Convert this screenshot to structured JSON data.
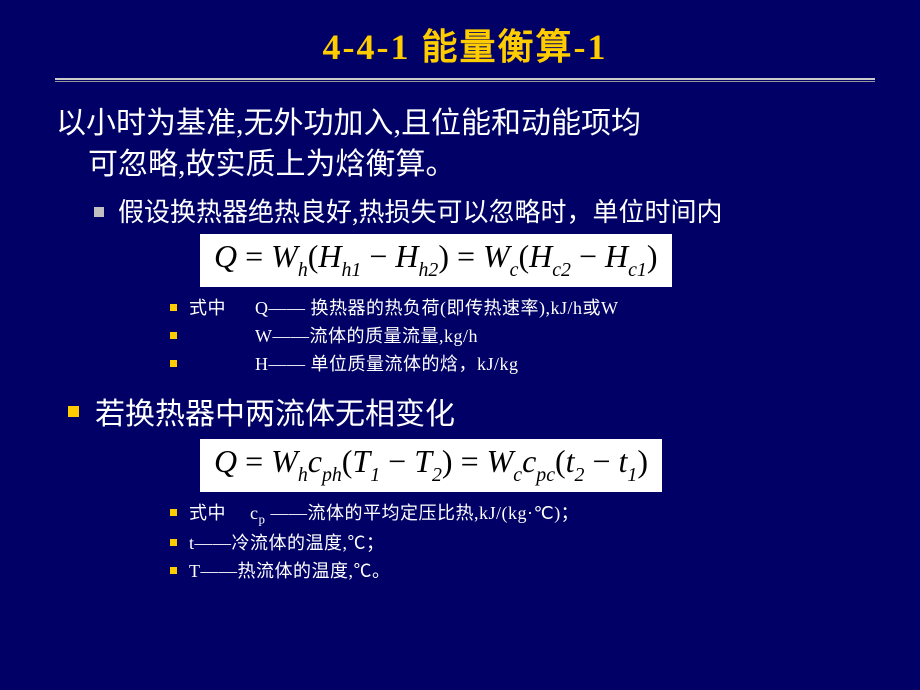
{
  "title": "4-4-1  能量衡算-1",
  "title_color": "#ffcc00",
  "rule_color_top": "#cccccc",
  "rule_color_bottom": "#999999",
  "background": "#000066",
  "text_color": "#ffffff",
  "bullet_level1_color": "#c0c0c0",
  "bullet_level0_color": "#ffcc00",
  "bullet_small_color": "#ffcc00",
  "main_line1": "以小时为基准,无外功加入,且位能和动能项均",
  "main_line2": "可忽略,故实质上为焓衡算。",
  "assumption": "假设换热器绝热良好,热损失可以忽略时，单位时间内",
  "eq1": {
    "html": "Q <span class=\"rm\">=</span> W<sub>h</sub><span class=\"rm\">(</span>H<sub>h1</sub> <span class=\"rm\">&minus;</span> H<sub>h2</sub><span class=\"rm\">)</span> <span class=\"rm\">=</span> W<sub>c</sub><span class=\"rm\">(</span>H<sub>c2</sub> <span class=\"rm\">&minus;</span> H<sub>c1</sub><span class=\"rm\">)</span>",
    "fontsize": 32,
    "bg": "#ffffff",
    "fg": "#000000"
  },
  "defs1": [
    {
      "lead": "式中",
      "body": "Q—— 换热器的热负荷(即传热速率),kJ/h或W"
    },
    {
      "lead": "",
      "body": "W——流体的质量流量,kg/h"
    },
    {
      "lead": "",
      "body": "H—— 单位质量流体的焓，kJ/kg"
    }
  ],
  "nophase": "若换热器中两流体无相变化",
  "eq2": {
    "html": "Q <span class=\"rm\">=</span> W<sub>h</sub>c<sub>ph</sub><span class=\"rm\">(</span>T<sub>1</sub> <span class=\"rm\">&minus;</span> T<sub>2</sub><span class=\"rm\">)</span> <span class=\"rm\">=</span> W<sub>c</sub>c<sub>pc</sub><span class=\"rm\">(</span>t<sub>2</sub> <span class=\"rm\">&minus;</span> t<sub>1</sub><span class=\"rm\">)</span>",
    "fontsize": 32,
    "bg": "#ffffff",
    "fg": "#000000"
  },
  "defs2": [
    {
      "lead": "式中",
      "body": "c<sub>p</sub> ——流体的平均定压比热,kJ/(kg·℃)；"
    },
    {
      "lead": "",
      "body": "t——冷流体的温度,℃；"
    },
    {
      "lead": "",
      "body": "T——热流体的温度,℃。"
    }
  ]
}
